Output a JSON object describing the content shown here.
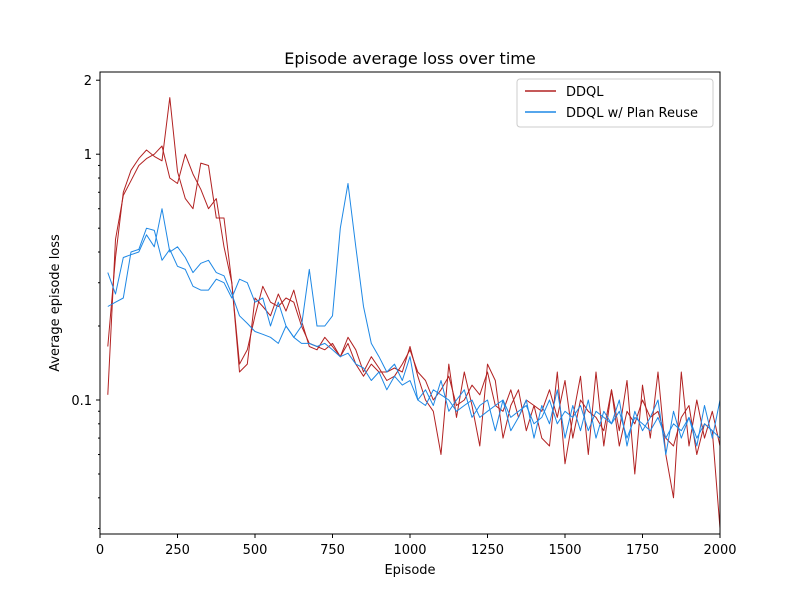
{
  "chart_data": {
    "type": "line",
    "title": "Episode average loss over time",
    "xlabel": "Episode",
    "ylabel": "Average episode loss",
    "xlim": [
      0,
      2000
    ],
    "ylim": [
      0.0285,
      2.16
    ],
    "yscale": "log",
    "grid": false,
    "legend_position": "top-right",
    "xticks": [
      0,
      250,
      500,
      750,
      1000,
      1250,
      1500,
      1750,
      2000
    ],
    "xtick_labels": [
      "0",
      "250",
      "500",
      "750",
      "1000",
      "1250",
      "1500",
      "1750",
      "2000"
    ],
    "yticks": [
      0.1,
      1,
      2
    ],
    "ytick_labels": [
      "0.1",
      "1",
      "2"
    ],
    "x": [
      25,
      50,
      75,
      100,
      125,
      150,
      175,
      200,
      225,
      250,
      275,
      300,
      325,
      350,
      375,
      400,
      425,
      450,
      475,
      500,
      525,
      550,
      575,
      600,
      625,
      650,
      675,
      700,
      725,
      750,
      775,
      800,
      825,
      850,
      875,
      900,
      925,
      950,
      975,
      1000,
      1025,
      1050,
      1075,
      1100,
      1125,
      1150,
      1175,
      1200,
      1225,
      1250,
      1275,
      1300,
      1325,
      1350,
      1375,
      1400,
      1425,
      1450,
      1475,
      1500,
      1525,
      1550,
      1575,
      1600,
      1625,
      1650,
      1675,
      1700,
      1725,
      1750,
      1775,
      1800,
      1825,
      1850,
      1875,
      1900,
      1925,
      1950,
      1975,
      2000
    ],
    "series": [
      {
        "name": "DDQL",
        "color": "#b22222",
        "runs": [
          [
            0.105,
            0.45,
            0.68,
            0.78,
            0.9,
            0.96,
            1.0,
            1.08,
            0.8,
            0.76,
            1.0,
            0.83,
            0.72,
            0.6,
            0.66,
            0.42,
            0.3,
            0.14,
            0.16,
            0.22,
            0.29,
            0.25,
            0.24,
            0.26,
            0.25,
            0.2,
            0.17,
            0.165,
            0.16,
            0.17,
            0.15,
            0.18,
            0.16,
            0.13,
            0.15,
            0.135,
            0.12,
            0.125,
            0.14,
            0.16,
            0.13,
            0.12,
            0.1,
            0.11,
            0.125,
            0.095,
            0.1,
            0.115,
            0.105,
            0.13,
            0.095,
            0.09,
            0.11,
            0.085,
            0.1,
            0.095,
            0.09,
            0.11,
            0.085,
            0.12,
            0.07,
            0.1,
            0.09,
            0.085,
            0.075,
            0.11,
            0.065,
            0.09,
            0.08,
            0.1,
            0.085,
            0.09,
            0.07,
            0.065,
            0.085,
            0.095,
            0.06,
            0.08,
            0.075,
            0.03
          ],
          [
            0.165,
            0.38,
            0.7,
            0.86,
            0.96,
            1.04,
            0.98,
            0.94,
            1.7,
            0.85,
            0.66,
            0.6,
            0.92,
            0.9,
            0.55,
            0.55,
            0.3,
            0.13,
            0.14,
            0.26,
            0.24,
            0.22,
            0.27,
            0.23,
            0.28,
            0.21,
            0.165,
            0.16,
            0.18,
            0.165,
            0.15,
            0.17,
            0.14,
            0.125,
            0.14,
            0.13,
            0.13,
            0.135,
            0.13,
            0.165,
            0.125,
            0.1,
            0.09,
            0.06,
            0.14,
            0.085,
            0.13,
            0.095,
            0.065,
            0.14,
            0.12,
            0.07,
            0.095,
            0.11,
            0.075,
            0.095,
            0.07,
            0.065,
            0.13,
            0.055,
            0.085,
            0.125,
            0.06,
            0.13,
            0.065,
            0.11,
            0.075,
            0.12,
            0.05,
            0.115,
            0.07,
            0.13,
            0.06,
            0.04,
            0.13,
            0.065,
            0.1,
            0.07,
            0.09,
            0.065
          ]
        ]
      },
      {
        "name": "DDQL w/ Plan Reuse",
        "color": "#1e88e5",
        "runs": [
          [
            0.33,
            0.27,
            0.38,
            0.39,
            0.4,
            0.47,
            0.42,
            0.6,
            0.4,
            0.42,
            0.38,
            0.33,
            0.36,
            0.37,
            0.33,
            0.32,
            0.27,
            0.22,
            0.205,
            0.19,
            0.185,
            0.18,
            0.17,
            0.2,
            0.18,
            0.17,
            0.17,
            0.165,
            0.17,
            0.16,
            0.15,
            0.155,
            0.14,
            0.135,
            0.12,
            0.13,
            0.11,
            0.125,
            0.115,
            0.12,
            0.1,
            0.095,
            0.11,
            0.105,
            0.1,
            0.09,
            0.095,
            0.1,
            0.085,
            0.09,
            0.095,
            0.1,
            0.085,
            0.09,
            0.095,
            0.08,
            0.085,
            0.1,
            0.08,
            0.09,
            0.085,
            0.095,
            0.075,
            0.09,
            0.085,
            0.08,
            0.09,
            0.07,
            0.085,
            0.08,
            0.075,
            0.085,
            0.07,
            0.08,
            0.075,
            0.085,
            0.07,
            0.08,
            0.075,
            0.07
          ],
          [
            0.24,
            0.25,
            0.26,
            0.4,
            0.41,
            0.5,
            0.49,
            0.37,
            0.41,
            0.35,
            0.34,
            0.29,
            0.28,
            0.28,
            0.31,
            0.3,
            0.26,
            0.31,
            0.3,
            0.25,
            0.26,
            0.2,
            0.25,
            0.2,
            0.18,
            0.2,
            0.34,
            0.2,
            0.2,
            0.22,
            0.5,
            0.76,
            0.42,
            0.24,
            0.17,
            0.15,
            0.13,
            0.14,
            0.12,
            0.15,
            0.1,
            0.11,
            0.095,
            0.12,
            0.09,
            0.1,
            0.11,
            0.085,
            0.095,
            0.1,
            0.075,
            0.1,
            0.075,
            0.085,
            0.1,
            0.07,
            0.095,
            0.08,
            0.11,
            0.07,
            0.095,
            0.075,
            0.1,
            0.07,
            0.09,
            0.08,
            0.1,
            0.065,
            0.09,
            0.075,
            0.085,
            0.1,
            0.06,
            0.09,
            0.07,
            0.085,
            0.065,
            0.095,
            0.07,
            0.1
          ]
        ]
      }
    ]
  }
}
